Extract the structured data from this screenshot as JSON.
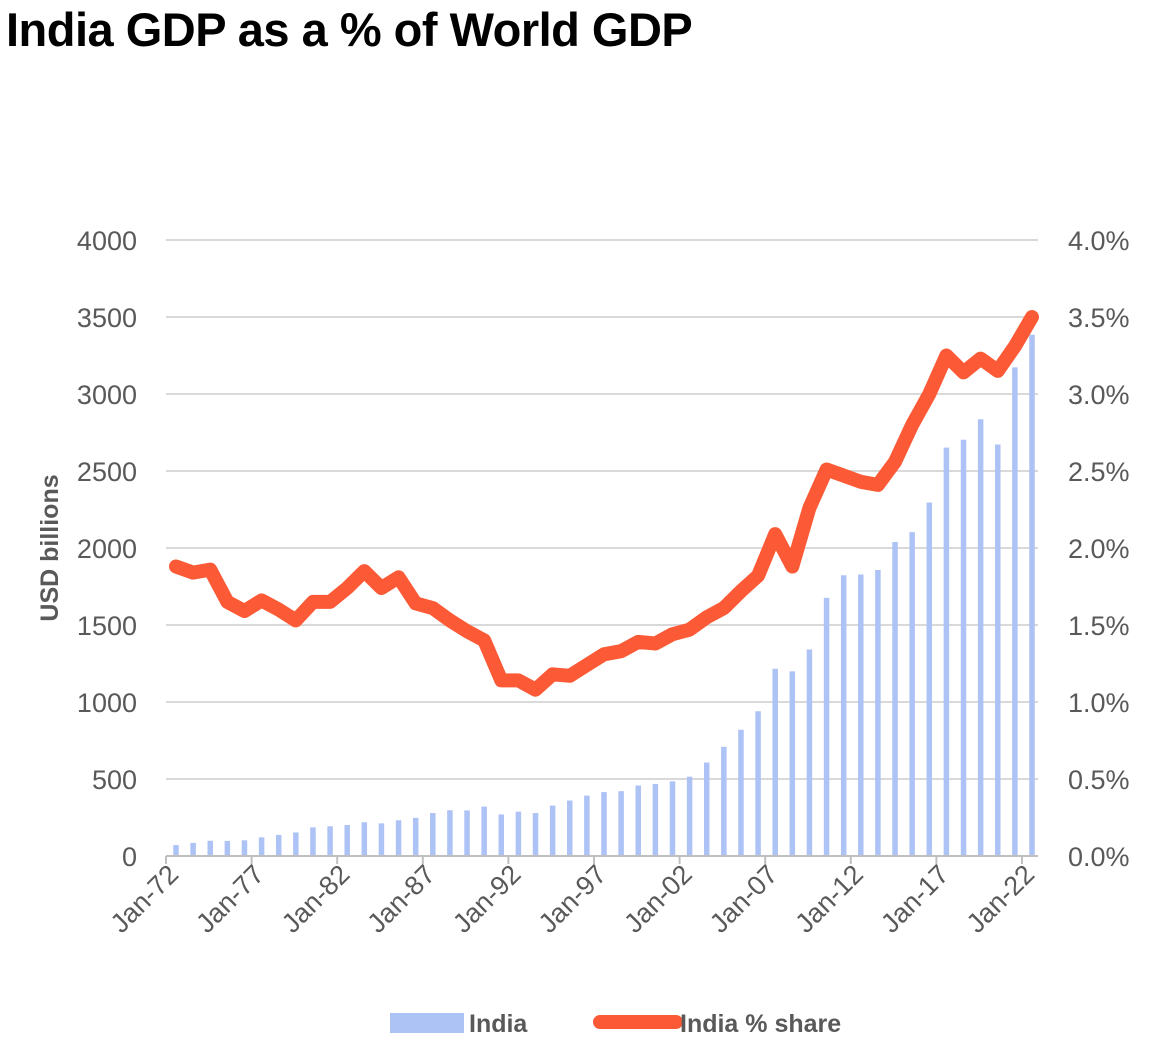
{
  "chart_data": {
    "type": "bar+line",
    "title": "India GDP as a % of World GDP",
    "ylabel": "USD billions",
    "y2label": "",
    "ylim": [
      0,
      4000
    ],
    "y2lim": [
      0,
      0.04
    ],
    "yticks": [
      "0",
      "500",
      "1000",
      "1500",
      "2000",
      "2500",
      "3000",
      "3500",
      "4000"
    ],
    "y2ticks": [
      "0.0%",
      "0.5%",
      "1.0%",
      "1.5%",
      "2.0%",
      "2.5%",
      "3.0%",
      "3.5%",
      "4.0%"
    ],
    "xticks": [
      "Jan-72",
      "Jan-77",
      "Jan-82",
      "Jan-87",
      "Jan-92",
      "Jan-97",
      "Jan-02",
      "Jan-07",
      "Jan-12",
      "Jan-17",
      "Jan-22"
    ],
    "years": [
      1972,
      1973,
      1974,
      1975,
      1976,
      1977,
      1978,
      1979,
      1980,
      1981,
      1982,
      1983,
      1984,
      1985,
      1986,
      1987,
      1988,
      1989,
      1990,
      1991,
      1992,
      1993,
      1994,
      1995,
      1996,
      1997,
      1998,
      1999,
      2000,
      2001,
      2002,
      2003,
      2004,
      2005,
      2006,
      2007,
      2008,
      2009,
      2010,
      2011,
      2012,
      2013,
      2014,
      2015,
      2016,
      2017,
      2018,
      2019,
      2020,
      2021,
      2022
    ],
    "series": [
      {
        "name": "India",
        "type": "bar",
        "color": "#adc2f5",
        "values": [
          71,
          85,
          99,
          98,
          102,
          121,
          137,
          153,
          186,
          193,
          201,
          219,
          212,
          232,
          248,
          279,
          297,
          296,
          321,
          270,
          288,
          279,
          327,
          360,
          392,
          415,
          421,
          458,
          468,
          485,
          515,
          607,
          709,
          820,
          940,
          1216,
          1199,
          1341,
          1676,
          1823,
          1828,
          1857,
          2039,
          2103,
          2295,
          2652,
          2703,
          2836,
          2672,
          3173,
          3385
        ]
      },
      {
        "name": "India % share",
        "type": "line",
        "color": "#fc5a36",
        "values": [
          0.0188,
          0.0184,
          0.0186,
          0.0165,
          0.0159,
          0.0166,
          0.016,
          0.0153,
          0.0165,
          0.0165,
          0.0174,
          0.0185,
          0.0174,
          0.0181,
          0.0164,
          0.0161,
          0.0153,
          0.0146,
          0.014,
          0.0114,
          0.0114,
          0.0108,
          0.0118,
          0.0117,
          0.0124,
          0.0131,
          0.0133,
          0.0139,
          0.0138,
          0.0144,
          0.0147,
          0.0155,
          0.0161,
          0.0172,
          0.0182,
          0.0209,
          0.0188,
          0.0226,
          0.0251,
          0.0247,
          0.0243,
          0.0241,
          0.0256,
          0.028,
          0.03,
          0.0325,
          0.0314,
          0.0323,
          0.0315,
          0.0331,
          0.035
        ]
      }
    ],
    "legend": [
      "India",
      "India % share"
    ],
    "legend_position": "bottom",
    "grid": true
  }
}
